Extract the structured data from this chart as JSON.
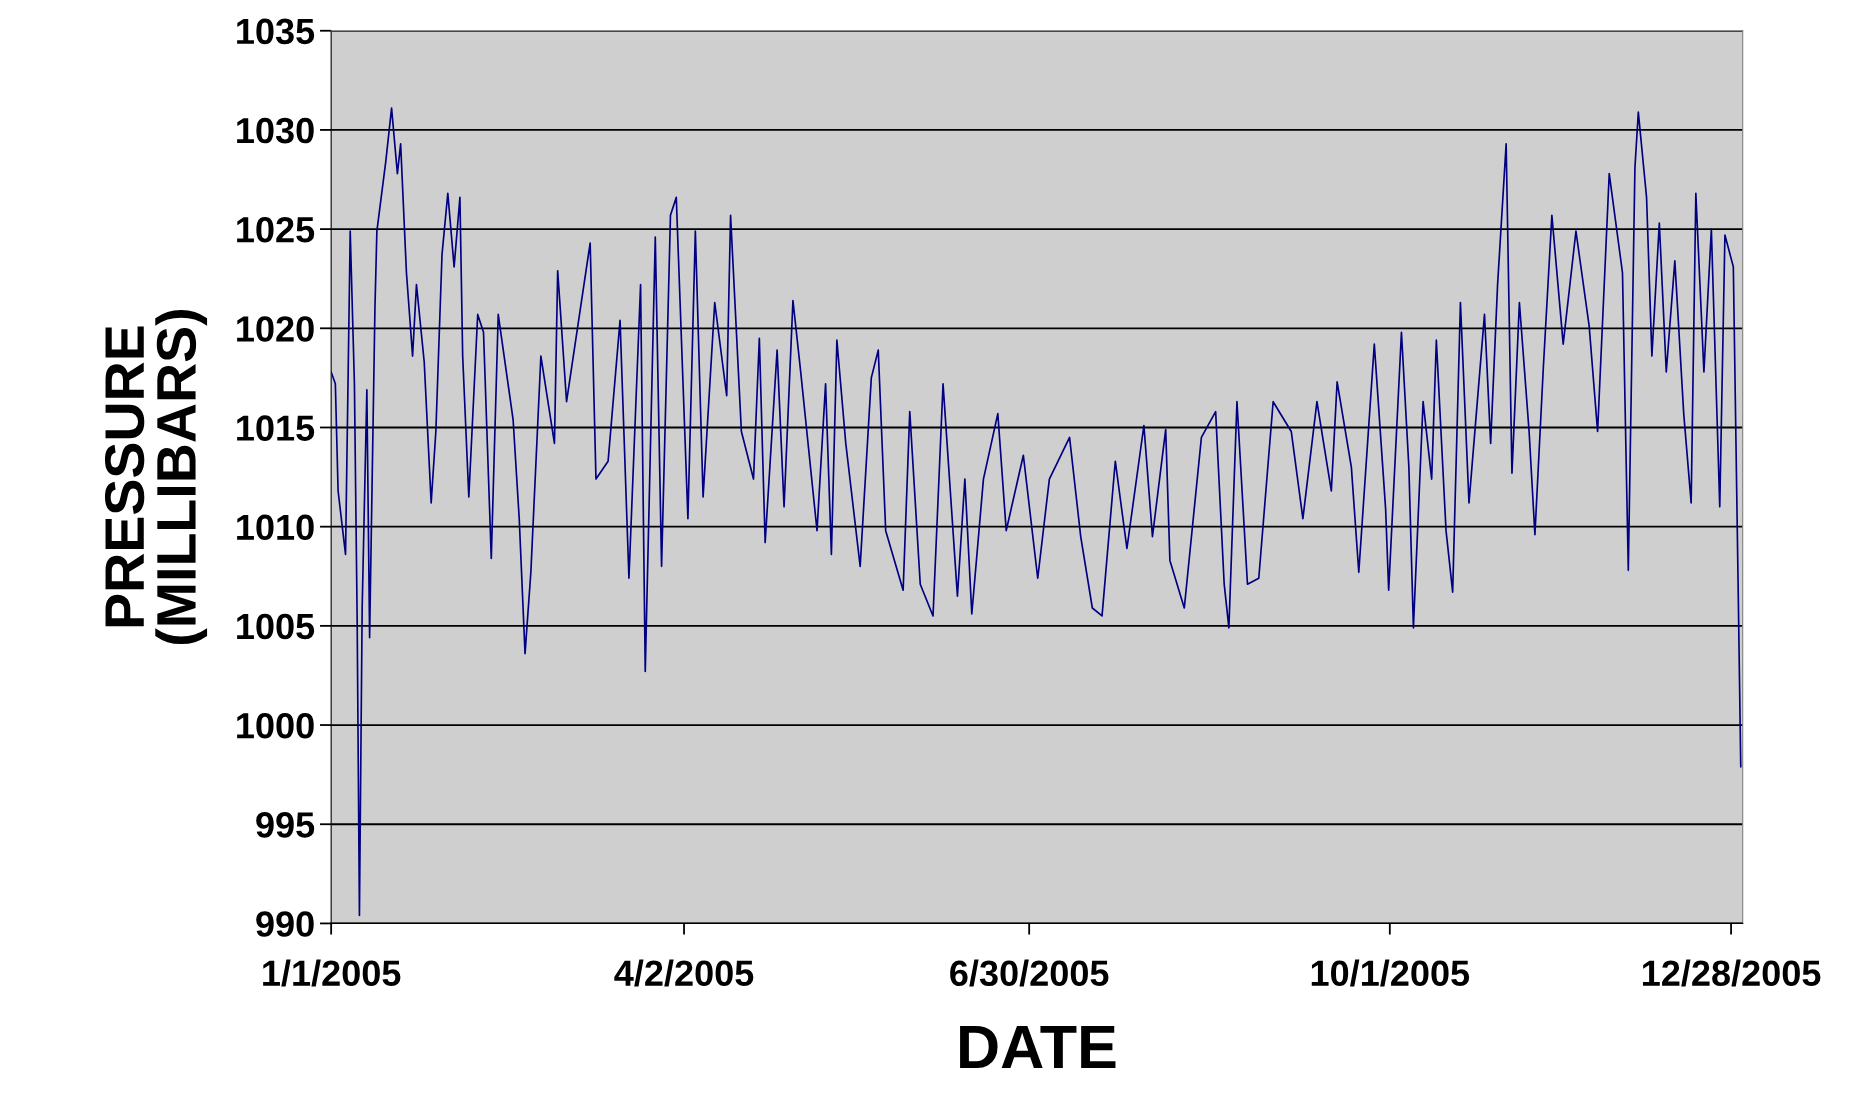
{
  "chart_data": {
    "type": "line",
    "xlabel": "DATE",
    "ylabel": "PRESSURE\n(MILLIBARS)",
    "xlim": [
      "2005-01-01",
      "2005-12-31"
    ],
    "xticks": [
      {
        "value": "2005-01-01",
        "label": "1/1/2005"
      },
      {
        "value": "2005-04-02",
        "label": "4/2/2005"
      },
      {
        "value": "2005-06-30",
        "label": "6/30/2005"
      },
      {
        "value": "2005-10-01",
        "label": "10/1/2005"
      },
      {
        "value": "2005-12-28",
        "label": "12/28/2005"
      }
    ],
    "ylim": [
      990,
      1035
    ],
    "yticks": [
      990,
      995,
      1000,
      1005,
      1010,
      1015,
      1020,
      1025,
      1030,
      1035
    ],
    "grid": "y",
    "marker": "none",
    "line_style": "solid",
    "series": [
      {
        "color": "#000080",
        "x": [
          "2005-01-01T00:00",
          "2005-01-02T02:00",
          "2005-01-02T19:00",
          "2005-01-04T17:00",
          "2005-01-05T22:00",
          "2005-01-07T00:00",
          "2005-01-07T17:00",
          "2005-01-08T07:00",
          "2005-01-09T00:00",
          "2005-01-10T05:00",
          "2005-01-10T22:00",
          "2005-01-12T07:00",
          "2005-01-12T19:00",
          "2005-01-15T02:00",
          "2005-01-16T14:00",
          "2005-01-18T02:00",
          "2005-01-18T22:00",
          "2005-01-20T10:00",
          "2005-01-22T00:00",
          "2005-01-23T00:00",
          "2005-01-25T00:00",
          "2005-01-26T19:00",
          "2005-01-28T00:00",
          "2005-01-29T14:00",
          "2005-01-31T02:00",
          "2005-02-01T17:00",
          "2005-02-03T05:00",
          "2005-02-03T22:00",
          "2005-02-05T12:00",
          "2005-02-07T19:00",
          "2005-02-09T07:00",
          "2005-02-11T07:00",
          "2005-02-13T02:00",
          "2005-02-16T22:00",
          "2005-02-18T12:00",
          "2005-02-20T00:00",
          "2005-02-21T12:00",
          "2005-02-24T02:00",
          "2005-02-27T14:00",
          "2005-02-28T10:00",
          "2005-03-02T17:00",
          "2005-03-06T12:00",
          "2005-03-08T19:00",
          "2005-03-10T07:00",
          "2005-03-13T10:00",
          "2005-03-16T12:00",
          "2005-03-18T19:00",
          "2005-03-21T19:00",
          "2005-03-23T00:00",
          "2005-03-25T14:00",
          "2005-03-27T05:00",
          "2005-03-29T12:00",
          "2005-03-31T00:00",
          "2005-04-03T00:00",
          "2005-04-04T22:00",
          "2005-04-06T22:00",
          "2005-04-09T22:00",
          "2005-04-13T00:00",
          "2005-04-14T00:00",
          "2005-04-16T19:00",
          "2005-04-19T22:00",
          "2005-04-21T10:00",
          "2005-04-22T22:00",
          "2005-04-26T00:00",
          "2005-04-27T19:00",
          "2005-04-30T02:00",
          "2005-05-02T02:00",
          "2005-05-06T07:00",
          "2005-05-08T12:00",
          "2005-05-10T00:00",
          "2005-05-11T10:00",
          "2005-05-13T17:00",
          "2005-05-17T10:00",
          "2005-05-20T07:00",
          "2005-05-22T02:00",
          "2005-05-24T00:00",
          "2005-05-28T12:00",
          "2005-05-30T05:00",
          "2005-06-01T22:00",
          "2005-06-05T05:00",
          "2005-06-07T19:00",
          "2005-06-11T12:00",
          "2005-06-13T10:00",
          "2005-06-15T05:00",
          "2005-06-18T05:00",
          "2005-06-21T22:00",
          "2005-06-24T02:00",
          "2005-06-28T12:00",
          "2005-07-02T05:00",
          "2005-07-05T05:00",
          "2005-07-10T10:00",
          "2005-07-13T07:00",
          "2005-07-16T07:00",
          "2005-07-18T19:00",
          "2005-07-22T05:00",
          "2005-07-25T05:00",
          "2005-07-29T14:00",
          "2005-07-31T19:00",
          "2005-08-04T05:00",
          "2005-08-05T07:00",
          "2005-08-09T00:00",
          "2005-08-13T10:00",
          "2005-08-17T02:00",
          "2005-08-19T07:00",
          "2005-08-20T12:00",
          "2005-08-22T14:00",
          "2005-08-25T07:00",
          "2005-08-28T05:00",
          "2005-08-31T22:00",
          "2005-09-05T14:00",
          "2005-09-08T14:00",
          "2005-09-12T05:00",
          "2005-09-15T22:00",
          "2005-09-17T10:00",
          "2005-09-21T02:00",
          "2005-09-23T00:00",
          "2005-09-27T00:00",
          "2005-09-29T22:00",
          "2005-09-30T17:00",
          "2005-10-04T00:00",
          "2005-10-05T22:00",
          "2005-10-07T02:00",
          "2005-10-09T14:00",
          "2005-10-11T19:00",
          "2005-10-13T00:00",
          "2005-10-15T12:00",
          "2005-10-17T05:00",
          "2005-10-19T05:00",
          "2005-10-21T10:00",
          "2005-10-25T10:00",
          "2005-10-27T00:00",
          "2005-10-28T19:00",
          "2005-10-31T00:00",
          "2005-11-01T12:00",
          "2005-11-03T10:00",
          "2005-11-05T22:00",
          "2005-11-07T10:00",
          "2005-11-09T14:00",
          "2005-11-11T19:00",
          "2005-11-14T17:00",
          "2005-11-18T00:00",
          "2005-11-21T10:00",
          "2005-11-23T14:00",
          "2005-11-26T14:00",
          "2005-11-30T00:00",
          "2005-12-01T12:00",
          "2005-12-03T05:00",
          "2005-12-04T02:00",
          "2005-12-06T05:00",
          "2005-12-07T14:00",
          "2005-12-09T12:00",
          "2005-12-11T07:00",
          "2005-12-13T12:00",
          "2005-12-15T19:00",
          "2005-12-17T17:00",
          "2005-12-18T22:00",
          "2005-12-21T00:00",
          "2005-12-22T22:00",
          "2005-12-25T02:00",
          "2005-12-26T10:00",
          "2005-12-28T14:00",
          "2005-12-29T19:00",
          "2005-12-30T12:00"
        ],
        "values": [
          1017.8,
          1017.2,
          1011.8,
          1008.6,
          1024.9,
          1017.2,
          1005.3,
          990.4,
          1005.9,
          1016.9,
          1004.4,
          1021,
          1024.9,
          1028.4,
          1031.1,
          1027.8,
          1029.3,
          1022.8,
          1018.6,
          1022.2,
          1018.3,
          1011.2,
          1014.8,
          1023.7,
          1026.8,
          1023.1,
          1026.6,
          1018.6,
          1011.5,
          1020.7,
          1019.8,
          1008.4,
          1020.7,
          1015.4,
          1010.4,
          1003.6,
          1007.7,
          1018.6,
          1014.2,
          1022.9,
          1016.3,
          1021.3,
          1024.3,
          1012.4,
          1013.3,
          1020.4,
          1007.4,
          1022.2,
          1002.7,
          1024.6,
          1008,
          1025.7,
          1026.6,
          1010.4,
          1024.9,
          1011.5,
          1021.3,
          1016.6,
          1025.7,
          1014.8,
          1012.4,
          1019.5,
          1009.2,
          1018.9,
          1011,
          1021.4,
          1017.8,
          1009.8,
          1017.2,
          1008.6,
          1019.4,
          1014.2,
          1008,
          1017.5,
          1018.9,
          1009.8,
          1006.8,
          1015.8,
          1007.1,
          1005.5,
          1017.2,
          1006.5,
          1012.4,
          1005.6,
          1012.4,
          1015.7,
          1009.8,
          1013.6,
          1007.4,
          1012.4,
          1014.5,
          1009.5,
          1005.9,
          1005.5,
          1013.3,
          1008.9,
          1015.1,
          1009.5,
          1014.9,
          1008.3,
          1005.9,
          1014.5,
          1015.8,
          1007.1,
          1004.9,
          1016.3,
          1007.1,
          1007.4,
          1016.3,
          1014.8,
          1010.4,
          1016.3,
          1011.8,
          1017.3,
          1013,
          1007.7,
          1019.2,
          1010.9,
          1006.8,
          1019.8,
          1013,
          1004.9,
          1016.3,
          1012.4,
          1019.4,
          1009.8,
          1006.7,
          1021.3,
          1011.2,
          1020.7,
          1014.2,
          1022.2,
          1029.3,
          1012.7,
          1021.3,
          1014.8,
          1009.6,
          1018,
          1025.7,
          1019.2,
          1024.9,
          1020.1,
          1014.8,
          1027.8,
          1022.8,
          1007.8,
          1028.1,
          1030.9,
          1026.6,
          1018.6,
          1025.3,
          1017.8,
          1023.4,
          1015.7,
          1011.2,
          1026.8,
          1017.8,
          1025,
          1011,
          1024.7,
          1023.1,
          1007.4,
          997.9
        ]
      }
    ]
  }
}
